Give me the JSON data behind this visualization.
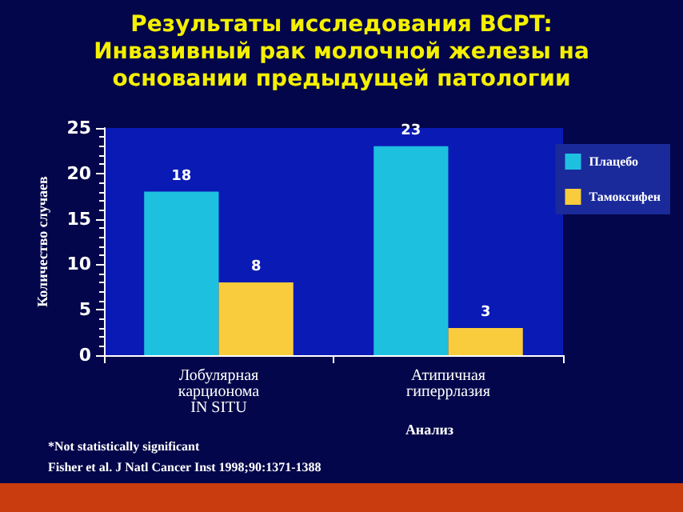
{
  "chart_data": {
    "type": "bar",
    "title": "Результаты исследования BCPT:\nИнвазивный рак молочной железы на\nосновании предыдущей патологии",
    "categories": [
      "Лобулярная\nкарционома\nIN SITU",
      "Атипичная\nгиперрлазия"
    ],
    "series": [
      {
        "name": "Плацебо",
        "color": "#1ec0e0",
        "values": [
          18,
          23
        ]
      },
      {
        "name": "Тамоксифен",
        "color": "#f8cc3c",
        "values": [
          8,
          3
        ]
      }
    ],
    "xlabel": "Анализ",
    "ylabel": "Количество случаев",
    "ylim": [
      0,
      25
    ],
    "yticks": [
      0,
      5,
      10,
      15,
      20,
      25
    ],
    "grid": false,
    "legend": "top right",
    "data_labels": true,
    "annotations": [
      "*Not statistically significant",
      "Fisher et al. J Natl Cancer Inst 1998;90:1371-1388"
    ]
  }
}
